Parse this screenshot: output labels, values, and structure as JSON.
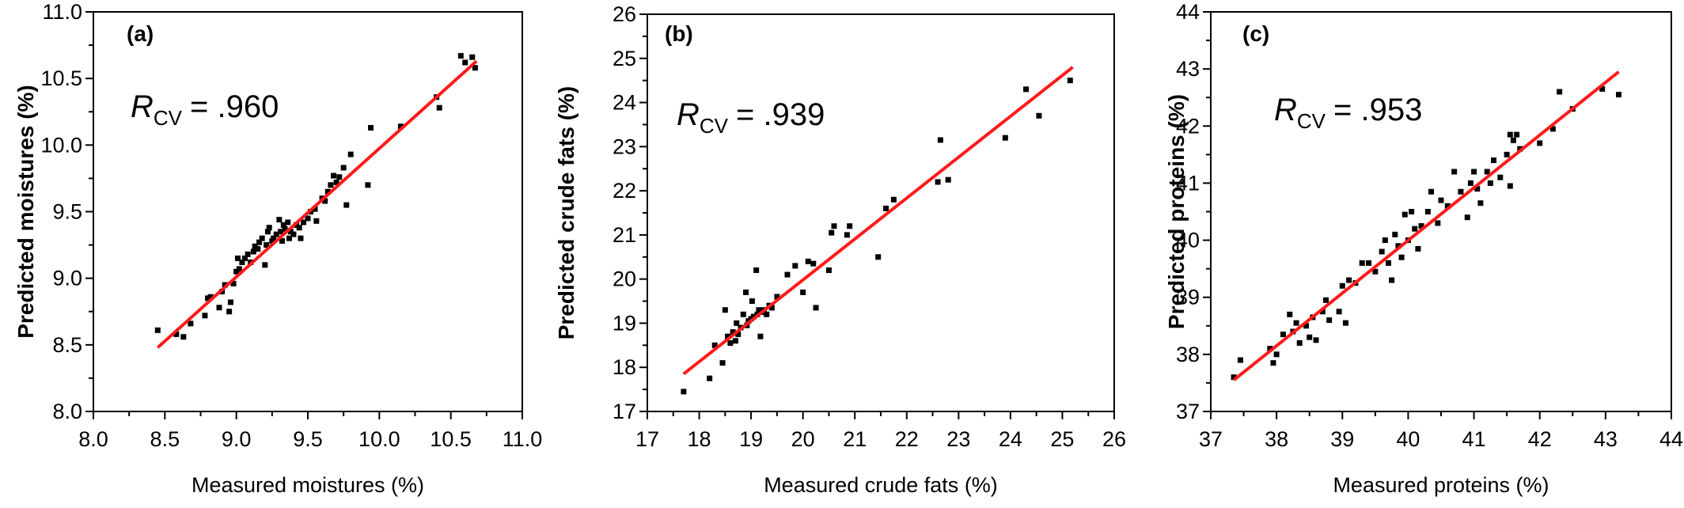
{
  "colors": {
    "points": "#000000",
    "fit_line": "#ff1a1a",
    "axes": "#000000"
  },
  "chart_data": [
    {
      "type": "scatter",
      "panel_label": "(a)",
      "xlabel": "Measured moistures (%)",
      "ylabel": "Predicted moistures (%)",
      "xlim": [
        8.0,
        11.0
      ],
      "ylim": [
        8.0,
        11.0
      ],
      "xticks": [
        "8.0",
        "8.5",
        "9.0",
        "9.5",
        "10.0",
        "10.5",
        "11.0"
      ],
      "yticks": [
        "8.0",
        "8.5",
        "9.0",
        "9.5",
        "10.0",
        "10.5",
        "11.0"
      ],
      "annotation": {
        "symbol": "R",
        "subscript": "CV",
        "value": "= .960"
      },
      "fit_line": {
        "x": [
          8.45,
          10.68
        ],
        "y": [
          8.48,
          10.63
        ]
      },
      "grid": false,
      "points": [
        [
          8.45,
          8.61
        ],
        [
          8.58,
          8.58
        ],
        [
          8.63,
          8.56
        ],
        [
          8.68,
          8.66
        ],
        [
          8.78,
          8.72
        ],
        [
          8.8,
          8.85
        ],
        [
          8.82,
          8.86
        ],
        [
          8.88,
          8.78
        ],
        [
          8.9,
          8.9
        ],
        [
          8.92,
          8.95
        ],
        [
          8.95,
          8.75
        ],
        [
          8.96,
          8.82
        ],
        [
          8.98,
          8.96
        ],
        [
          9.0,
          9.05
        ],
        [
          9.01,
          9.15
        ],
        [
          9.02,
          9.07
        ],
        [
          9.04,
          9.12
        ],
        [
          9.06,
          9.15
        ],
        [
          9.08,
          9.18
        ],
        [
          9.1,
          9.12
        ],
        [
          9.12,
          9.2
        ],
        [
          9.13,
          9.24
        ],
        [
          9.15,
          9.22
        ],
        [
          9.16,
          9.27
        ],
        [
          9.18,
          9.3
        ],
        [
          9.2,
          9.1
        ],
        [
          9.21,
          9.25
        ],
        [
          9.22,
          9.35
        ],
        [
          9.23,
          9.38
        ],
        [
          9.25,
          9.28
        ],
        [
          9.26,
          9.3
        ],
        [
          9.28,
          9.33
        ],
        [
          9.3,
          9.44
        ],
        [
          9.31,
          9.35
        ],
        [
          9.32,
          9.28
        ],
        [
          9.33,
          9.4
        ],
        [
          9.34,
          9.37
        ],
        [
          9.36,
          9.42
        ],
        [
          9.37,
          9.3
        ],
        [
          9.38,
          9.35
        ],
        [
          9.4,
          9.33
        ],
        [
          9.42,
          9.4
        ],
        [
          9.44,
          9.38
        ],
        [
          9.45,
          9.3
        ],
        [
          9.47,
          9.42
        ],
        [
          9.5,
          9.45
        ],
        [
          9.52,
          9.5
        ],
        [
          9.55,
          9.52
        ],
        [
          9.56,
          9.43
        ],
        [
          9.6,
          9.6
        ],
        [
          9.62,
          9.58
        ],
        [
          9.64,
          9.65
        ],
        [
          9.66,
          9.7
        ],
        [
          9.68,
          9.77
        ],
        [
          9.7,
          9.72
        ],
        [
          9.72,
          9.76
        ],
        [
          9.75,
          9.83
        ],
        [
          9.77,
          9.55
        ],
        [
          9.8,
          9.93
        ],
        [
          9.92,
          9.7
        ],
        [
          9.94,
          10.13
        ],
        [
          10.15,
          10.14
        ],
        [
          10.4,
          10.36
        ],
        [
          10.42,
          10.28
        ],
        [
          10.57,
          10.67
        ],
        [
          10.6,
          10.62
        ],
        [
          10.65,
          10.66
        ],
        [
          10.67,
          10.58
        ]
      ]
    },
    {
      "type": "scatter",
      "panel_label": "(b)",
      "xlabel": "Measured crude fats (%)",
      "ylabel": "Predicted crude fats (%)",
      "xlim": [
        17,
        26
      ],
      "ylim": [
        17,
        26
      ],
      "xticks": [
        "17",
        "18",
        "19",
        "20",
        "21",
        "22",
        "23",
        "24",
        "25",
        "26"
      ],
      "yticks": [
        "17",
        "18",
        "19",
        "20",
        "21",
        "22",
        "23",
        "24",
        "25",
        "26"
      ],
      "annotation": {
        "symbol": "R",
        "subscript": "CV",
        "value": "= .939"
      },
      "fit_line": {
        "x": [
          17.7,
          25.2
        ],
        "y": [
          17.85,
          24.8
        ]
      },
      "grid": false,
      "points": [
        [
          17.7,
          17.45
        ],
        [
          18.2,
          17.75
        ],
        [
          18.3,
          18.5
        ],
        [
          18.45,
          18.1
        ],
        [
          18.5,
          19.3
        ],
        [
          18.55,
          18.7
        ],
        [
          18.6,
          18.55
        ],
        [
          18.65,
          18.8
        ],
        [
          18.7,
          18.6
        ],
        [
          18.72,
          19.0
        ],
        [
          18.75,
          18.75
        ],
        [
          18.8,
          18.9
        ],
        [
          18.85,
          19.2
        ],
        [
          18.9,
          19.7
        ],
        [
          18.92,
          18.95
        ],
        [
          18.95,
          19.05
        ],
        [
          19.0,
          19.1
        ],
        [
          19.02,
          19.5
        ],
        [
          19.05,
          19.15
        ],
        [
          19.1,
          20.2
        ],
        [
          19.12,
          19.2
        ],
        [
          19.15,
          19.3
        ],
        [
          19.18,
          18.7
        ],
        [
          19.2,
          19.25
        ],
        [
          19.25,
          19.3
        ],
        [
          19.3,
          19.2
        ],
        [
          19.35,
          19.4
        ],
        [
          19.4,
          19.35
        ],
        [
          19.5,
          19.6
        ],
        [
          19.7,
          20.1
        ],
        [
          19.85,
          20.3
        ],
        [
          20.0,
          19.7
        ],
        [
          20.1,
          20.4
        ],
        [
          20.2,
          20.35
        ],
        [
          20.25,
          19.35
        ],
        [
          20.5,
          20.2
        ],
        [
          20.55,
          21.05
        ],
        [
          20.6,
          21.2
        ],
        [
          20.85,
          21.0
        ],
        [
          20.9,
          21.2
        ],
        [
          21.45,
          20.5
        ],
        [
          21.6,
          21.6
        ],
        [
          21.75,
          21.8
        ],
        [
          22.6,
          22.2
        ],
        [
          22.65,
          23.15
        ],
        [
          22.8,
          22.25
        ],
        [
          23.9,
          23.2
        ],
        [
          24.3,
          24.3
        ],
        [
          24.55,
          23.7
        ],
        [
          25.15,
          24.5
        ]
      ]
    },
    {
      "type": "scatter",
      "panel_label": "(c)",
      "xlabel": "Measured proteins (%)",
      "ylabel": "Predicted proteins (%)",
      "xlim": [
        37,
        44
      ],
      "ylim": [
        37,
        44
      ],
      "xticks": [
        "37",
        "38",
        "39",
        "40",
        "41",
        "42",
        "43",
        "44"
      ],
      "yticks": [
        "37",
        "38",
        "39",
        "40",
        "41",
        "42",
        "43",
        "44"
      ],
      "annotation": {
        "symbol": "R",
        "subscript": "CV",
        "value": "= .953"
      },
      "fit_line": {
        "x": [
          37.35,
          43.2
        ],
        "y": [
          37.55,
          42.95
        ]
      },
      "grid": false,
      "points": [
        [
          37.35,
          37.6
        ],
        [
          37.45,
          37.9
        ],
        [
          37.9,
          38.1
        ],
        [
          37.95,
          37.85
        ],
        [
          38.0,
          38.0
        ],
        [
          38.1,
          38.35
        ],
        [
          38.2,
          38.7
        ],
        [
          38.25,
          38.4
        ],
        [
          38.3,
          38.55
        ],
        [
          38.35,
          38.2
        ],
        [
          38.45,
          38.5
        ],
        [
          38.5,
          38.3
        ],
        [
          38.55,
          38.65
        ],
        [
          38.6,
          38.25
        ],
        [
          38.7,
          38.75
        ],
        [
          38.75,
          38.95
        ],
        [
          38.8,
          38.6
        ],
        [
          38.95,
          38.75
        ],
        [
          39.0,
          39.2
        ],
        [
          39.05,
          38.55
        ],
        [
          39.1,
          39.3
        ],
        [
          39.2,
          39.25
        ],
        [
          39.3,
          39.6
        ],
        [
          39.4,
          39.6
        ],
        [
          39.5,
          39.45
        ],
        [
          39.6,
          39.8
        ],
        [
          39.65,
          40.0
        ],
        [
          39.7,
          39.6
        ],
        [
          39.75,
          39.3
        ],
        [
          39.8,
          40.1
        ],
        [
          39.85,
          39.9
        ],
        [
          39.9,
          39.7
        ],
        [
          39.95,
          40.45
        ],
        [
          40.0,
          40.0
        ],
        [
          40.05,
          40.5
        ],
        [
          40.1,
          40.2
        ],
        [
          40.15,
          39.85
        ],
        [
          40.2,
          40.25
        ],
        [
          40.3,
          40.5
        ],
        [
          40.35,
          40.85
        ],
        [
          40.45,
          40.3
        ],
        [
          40.5,
          40.7
        ],
        [
          40.6,
          40.6
        ],
        [
          40.7,
          41.2
        ],
        [
          40.8,
          40.85
        ],
        [
          40.9,
          40.4
        ],
        [
          40.95,
          41.0
        ],
        [
          41.0,
          41.2
        ],
        [
          41.05,
          40.9
        ],
        [
          41.1,
          40.65
        ],
        [
          41.2,
          41.2
        ],
        [
          41.25,
          41.0
        ],
        [
          41.3,
          41.4
        ],
        [
          41.4,
          41.1
        ],
        [
          41.5,
          41.5
        ],
        [
          41.55,
          41.85
        ],
        [
          41.6,
          41.75
        ],
        [
          41.65,
          41.85
        ],
        [
          41.7,
          41.6
        ],
        [
          41.55,
          40.95
        ],
        [
          42.0,
          41.7
        ],
        [
          42.2,
          41.95
        ],
        [
          42.3,
          42.6
        ],
        [
          42.5,
          42.3
        ],
        [
          42.95,
          42.65
        ],
        [
          43.2,
          42.55
        ]
      ]
    }
  ]
}
